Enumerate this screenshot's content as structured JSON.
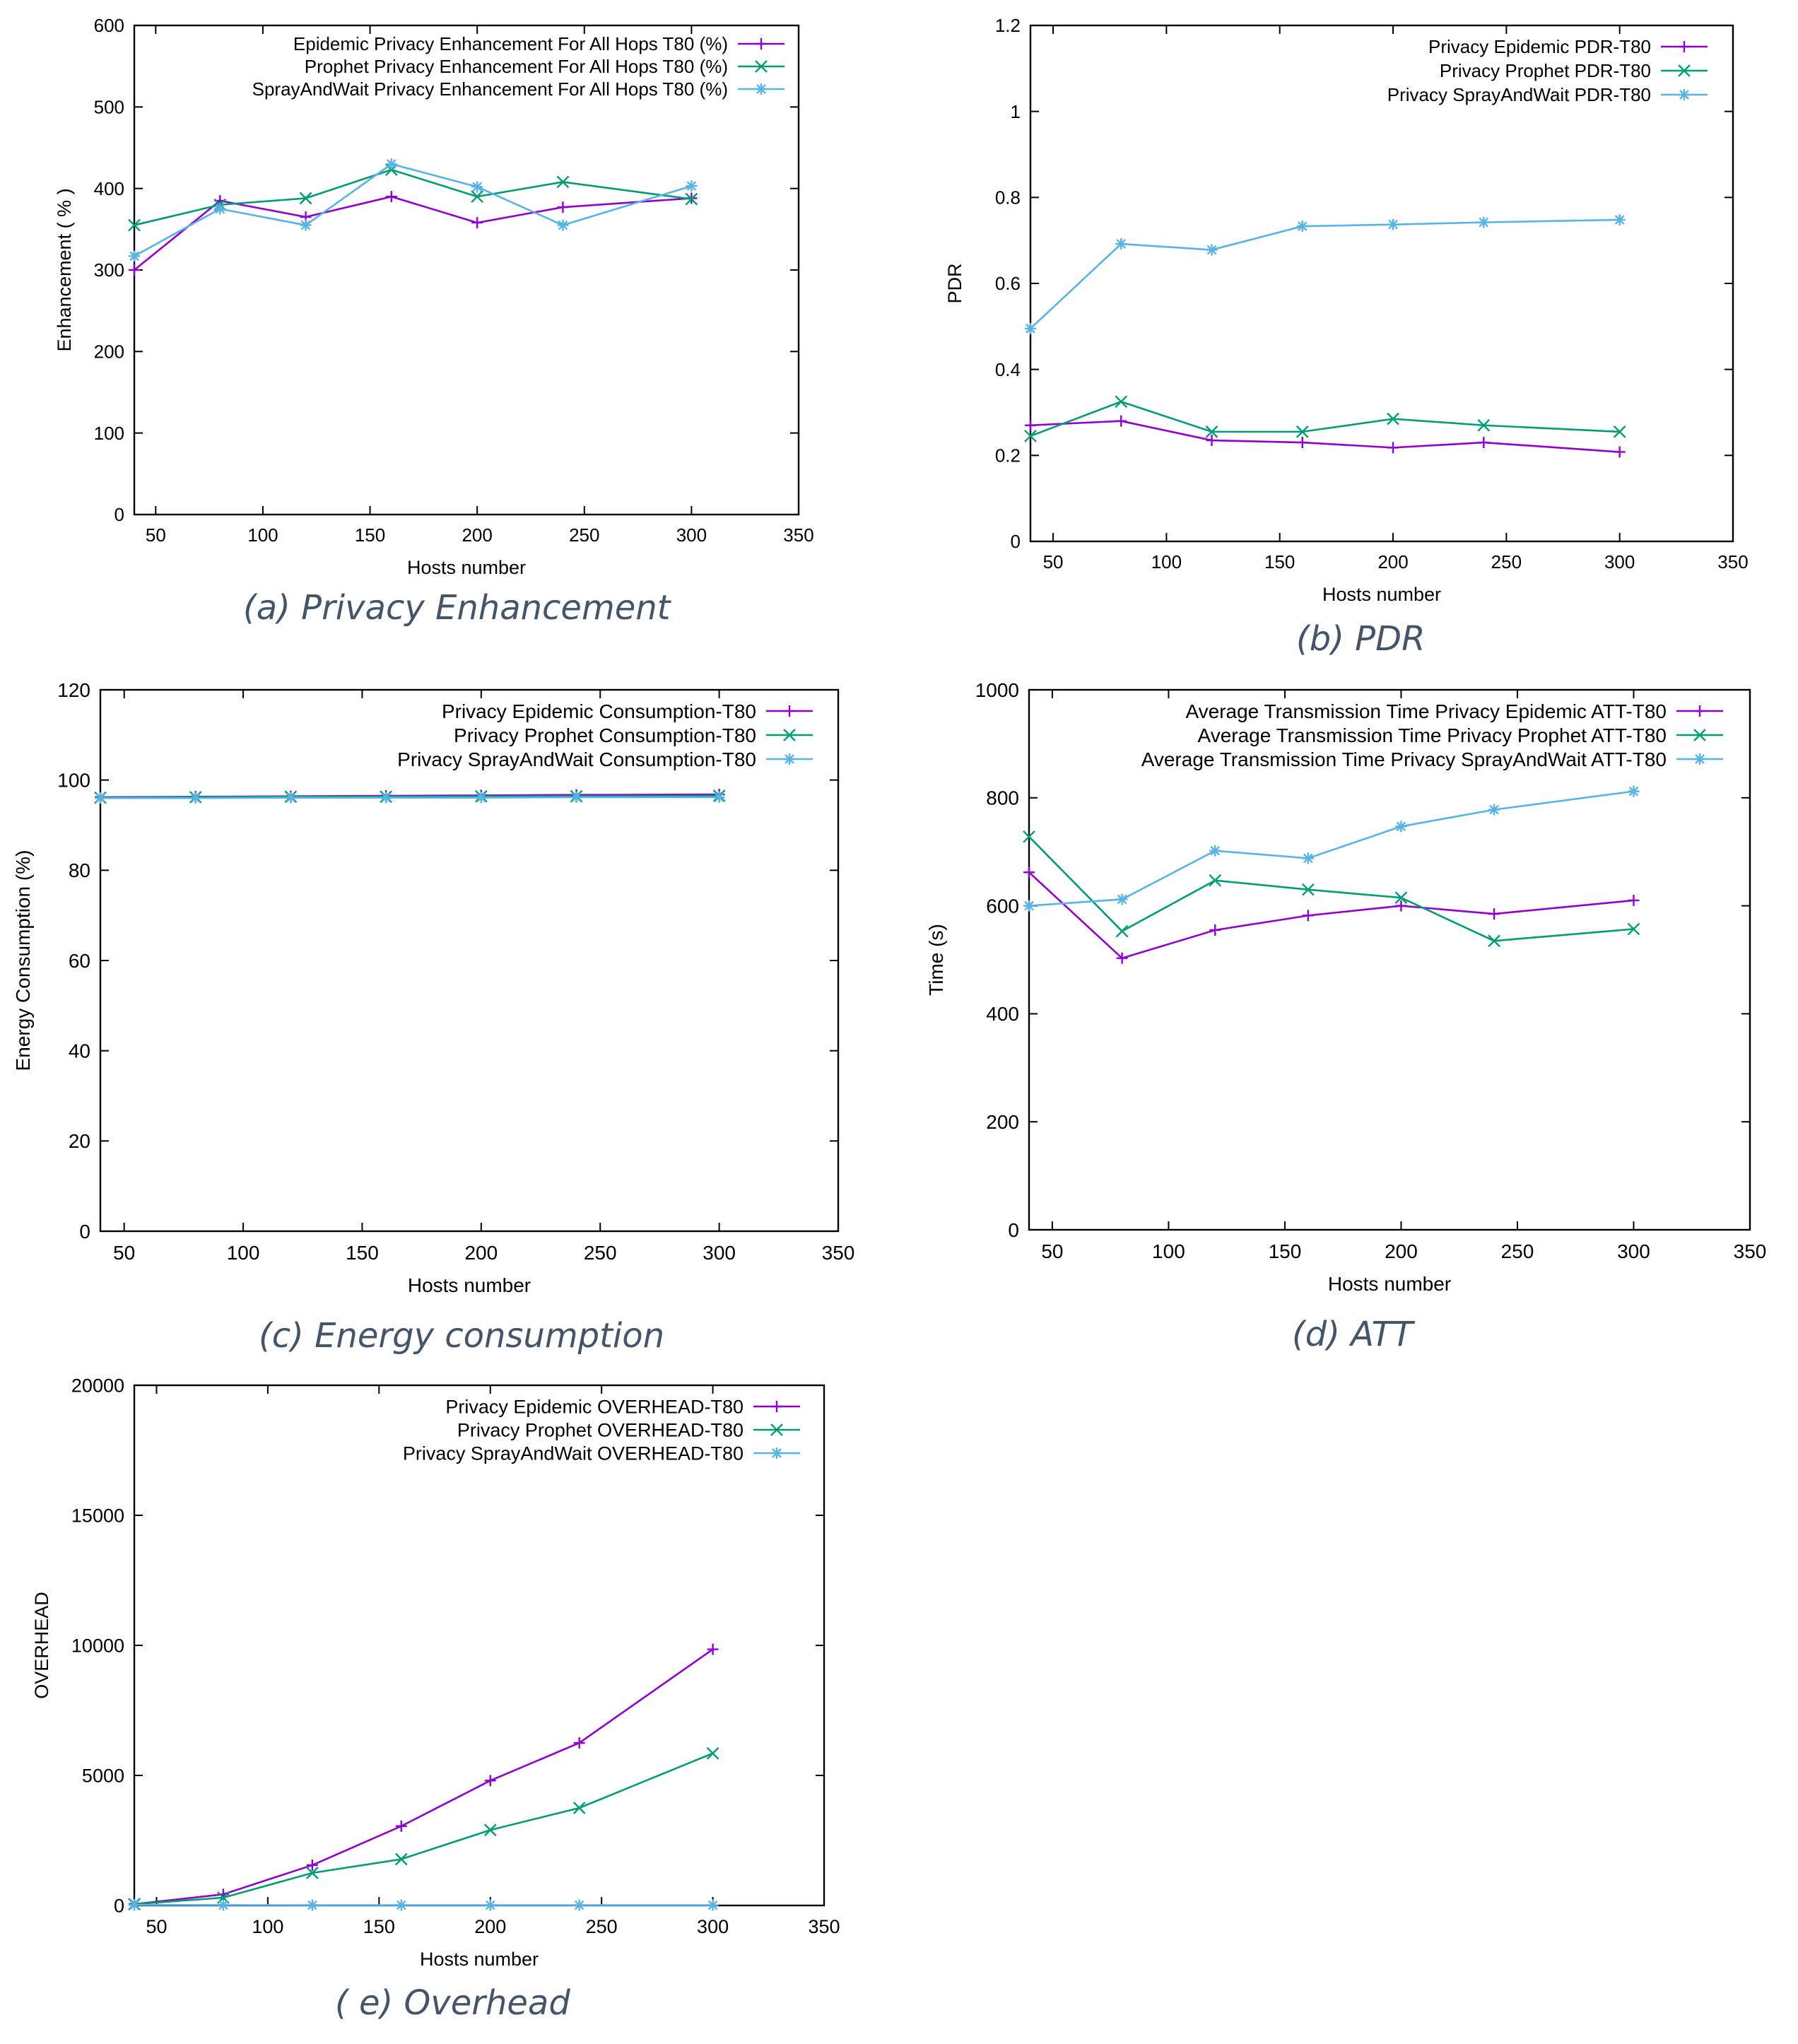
{
  "colors": {
    "epidemic": "#9400d3",
    "prophet": "#009e73",
    "spray": "#56b4e9",
    "axis": "#000000"
  },
  "chart_data": [
    {
      "id": "a",
      "type": "line",
      "caption": "(a) Privacy Enhancement",
      "xlabel": "Hosts number",
      "ylabel": "Enhancement ( % )",
      "xlim": [
        40,
        350
      ],
      "ylim": [
        0,
        600
      ],
      "xticks": [
        50,
        100,
        150,
        200,
        250,
        300,
        350
      ],
      "yticks": [
        0,
        100,
        200,
        300,
        400,
        500,
        600
      ],
      "x": [
        40,
        80,
        120,
        160,
        200,
        240,
        300
      ],
      "series": [
        {
          "name": "Epidemic Privacy Enhancement For All Hops T80 (%)",
          "color": "#9400d3",
          "marker": "plus",
          "values": [
            300,
            385,
            365,
            390,
            358,
            377,
            388
          ]
        },
        {
          "name": "Prophet Privacy Enhancement For All Hops T80 (%)",
          "color": "#009e73",
          "marker": "cross",
          "values": [
            355,
            380,
            388,
            423,
            390,
            408,
            387
          ]
        },
        {
          "name": "SprayAndWait Privacy Enhancement For All Hops T80 (%)",
          "color": "#56b4e9",
          "marker": "star",
          "values": [
            317,
            375,
            355,
            430,
            402,
            355,
            403
          ]
        }
      ]
    },
    {
      "id": "b",
      "type": "line",
      "caption": "(b) PDR",
      "xlabel": "Hosts number",
      "ylabel": "PDR",
      "xlim": [
        40,
        350
      ],
      "ylim": [
        0,
        1.2
      ],
      "xticks": [
        50,
        100,
        150,
        200,
        250,
        300,
        350
      ],
      "yticks": [
        0,
        0.2,
        0.4,
        0.6,
        0.8,
        1,
        1.2
      ],
      "x": [
        40,
        80,
        120,
        160,
        200,
        240,
        300
      ],
      "series": [
        {
          "name": "Privacy Epidemic PDR-T80",
          "color": "#9400d3",
          "marker": "plus",
          "values": [
            0.27,
            0.28,
            0.235,
            0.23,
            0.218,
            0.23,
            0.208
          ]
        },
        {
          "name": "Privacy Prophet PDR-T80",
          "color": "#009e73",
          "marker": "cross",
          "values": [
            0.245,
            0.325,
            0.255,
            0.255,
            0.285,
            0.27,
            0.255
          ]
        },
        {
          "name": "Privacy SprayAndWait PDR-T80",
          "color": "#56b4e9",
          "marker": "star",
          "values": [
            0.495,
            0.692,
            0.678,
            0.733,
            0.737,
            0.742,
            0.748
          ]
        }
      ]
    },
    {
      "id": "c",
      "type": "line",
      "caption": "(c) Energy consumption",
      "xlabel": "Hosts number",
      "ylabel": "Energy Consumption (%)",
      "xlim": [
        40,
        350
      ],
      "ylim": [
        0,
        120
      ],
      "xticks": [
        50,
        100,
        150,
        200,
        250,
        300,
        350
      ],
      "yticks": [
        0,
        20,
        40,
        60,
        80,
        100,
        120
      ],
      "x": [
        40,
        80,
        120,
        160,
        200,
        240,
        300
      ],
      "series": [
        {
          "name": "Privacy Epidemic Consumption-T80",
          "color": "#9400d3",
          "marker": "plus",
          "values": [
            96.2,
            96.3,
            96.4,
            96.5,
            96.6,
            96.7,
            96.8
          ]
        },
        {
          "name": "Privacy Prophet Consumption-T80",
          "color": "#009e73",
          "marker": "cross",
          "values": [
            96.1,
            96.2,
            96.3,
            96.3,
            96.4,
            96.4,
            96.5
          ]
        },
        {
          "name": "Privacy SprayAndWait Consumption-T80",
          "color": "#56b4e9",
          "marker": "star",
          "values": [
            96.0,
            96.0,
            96.1,
            96.1,
            96.1,
            96.2,
            96.2
          ]
        }
      ]
    },
    {
      "id": "d",
      "type": "line",
      "caption": "(d) ATT",
      "xlabel": "Hosts number",
      "ylabel": "Time (s)",
      "xlim": [
        40,
        350
      ],
      "ylim": [
        0,
        1000
      ],
      "xticks": [
        50,
        100,
        150,
        200,
        250,
        300,
        350
      ],
      "yticks": [
        0,
        200,
        400,
        600,
        800,
        1000
      ],
      "x": [
        40,
        80,
        120,
        160,
        200,
        240,
        300
      ],
      "series": [
        {
          "name": "Average Transmission Time Privacy Epidemic ATT-T80",
          "color": "#9400d3",
          "marker": "plus",
          "values": [
            662,
            503,
            555,
            582,
            600,
            585,
            610
          ]
        },
        {
          "name": "Average Transmission Time Privacy Prophet ATT-T80",
          "color": "#009e73",
          "marker": "cross",
          "values": [
            728,
            553,
            647,
            630,
            615,
            535,
            557
          ]
        },
        {
          "name": "Average Transmission Time Privacy SprayAndWait ATT-T80",
          "color": "#56b4e9",
          "marker": "star",
          "values": [
            600,
            612,
            702,
            688,
            747,
            778,
            812
          ]
        }
      ]
    },
    {
      "id": "e",
      "type": "line",
      "caption": "( e) Overhead",
      "xlabel": "Hosts number",
      "ylabel": "OVERHEAD",
      "xlim": [
        40,
        350
      ],
      "ylim": [
        0,
        20000
      ],
      "xticks": [
        50,
        100,
        150,
        200,
        250,
        300,
        350
      ],
      "yticks": [
        0,
        5000,
        10000,
        15000,
        20000
      ],
      "x": [
        40,
        80,
        120,
        160,
        200,
        240,
        300
      ],
      "series": [
        {
          "name": "Privacy Epidemic OVERHEAD-T80",
          "color": "#9400d3",
          "marker": "plus",
          "values": [
            50,
            430,
            1550,
            3050,
            4800,
            6250,
            9850
          ]
        },
        {
          "name": "Privacy Prophet OVERHEAD-T80",
          "color": "#009e73",
          "marker": "cross",
          "values": [
            50,
            300,
            1250,
            1780,
            2900,
            3750,
            5850
          ]
        },
        {
          "name": "Privacy SprayAndWait OVERHEAD-T80",
          "color": "#56b4e9",
          "marker": "star",
          "values": [
            20,
            15,
            12,
            12,
            12,
            12,
            12
          ]
        }
      ]
    }
  ]
}
